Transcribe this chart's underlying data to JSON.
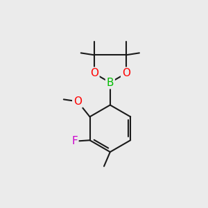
{
  "bg_color": "#ebebeb",
  "bond_color": "#1a1a1a",
  "bond_width": 1.5,
  "atom_colors": {
    "B": "#00bb00",
    "O": "#ff0000",
    "F": "#cc00cc",
    "O_methoxy": "#ff0000"
  },
  "font_size_atom": 11,
  "figsize": [
    3.0,
    3.0
  ],
  "dpi": 100
}
